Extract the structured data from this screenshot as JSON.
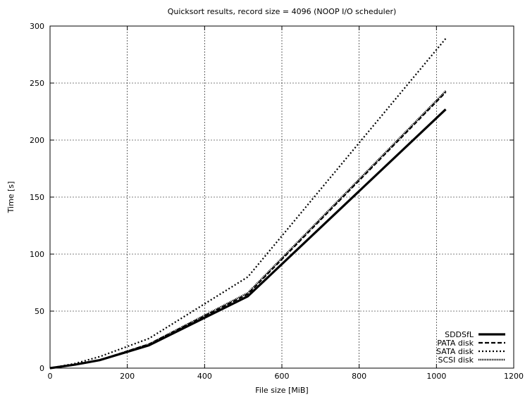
{
  "chart_data": {
    "type": "line",
    "title": "Quicksort results, record size = 4096 (NOOP I/O scheduler)",
    "xlabel": "File size [MiB]",
    "ylabel": "Time [s]",
    "xlim": [
      0,
      1200
    ],
    "ylim": [
      0,
      300
    ],
    "xticks": [
      0,
      200,
      400,
      600,
      800,
      1000,
      1200
    ],
    "yticks": [
      0,
      50,
      100,
      150,
      200,
      250,
      300
    ],
    "grid": true,
    "legend_position": "bottom-right",
    "series": [
      {
        "name": "SDDSfL",
        "style": "solid-thick",
        "x": [
          0,
          64,
          128,
          256,
          512,
          1024
        ],
        "y": [
          0,
          3,
          7,
          20,
          63,
          227
        ]
      },
      {
        "name": "PATA disk",
        "style": "dashed",
        "x": [
          0,
          64,
          128,
          256,
          512,
          1024
        ],
        "y": [
          0,
          3,
          7,
          21,
          65,
          242
        ]
      },
      {
        "name": "SATA disk",
        "style": "dotted",
        "x": [
          0,
          64,
          128,
          256,
          512,
          1024
        ],
        "y": [
          0,
          4,
          10,
          26,
          80,
          289
        ]
      },
      {
        "name": "SCSI disk",
        "style": "dense-dotted",
        "x": [
          0,
          64,
          128,
          256,
          512,
          1024
        ],
        "y": [
          0,
          3,
          7,
          21,
          66,
          243
        ]
      }
    ]
  }
}
